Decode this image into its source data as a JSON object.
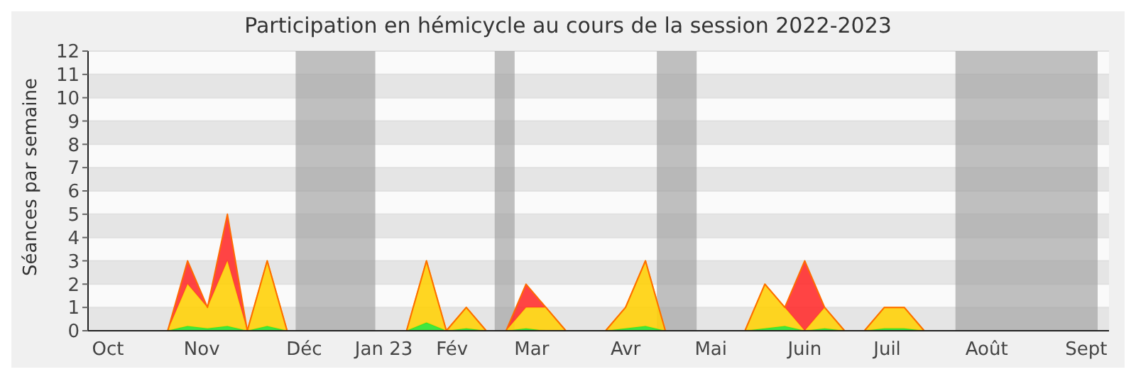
{
  "chart_data": {
    "type": "area",
    "title": "Participation en hémicycle au cours de la session 2022-2023",
    "ylabel": "Séances par semaine",
    "stacked": true,
    "grid": "y",
    "legend": false,
    "x": [
      "2022-09-26",
      "2022-10-24",
      "2022-10-31",
      "2022-11-07",
      "2022-11-14",
      "2022-11-21",
      "2022-11-28",
      "2022-12-05",
      "2023-01-16",
      "2023-01-23",
      "2023-01-30",
      "2023-02-06",
      "2023-02-13",
      "2023-02-20",
      "2023-02-27",
      "2023-03-06",
      "2023-03-13",
      "2023-03-27",
      "2023-04-03",
      "2023-04-10",
      "2023-04-17",
      "2023-05-15",
      "2023-05-22",
      "2023-05-29",
      "2023-06-05",
      "2023-06-12",
      "2023-06-19",
      "2023-06-26",
      "2023-07-03",
      "2023-07-10",
      "2023-07-17",
      "2023-09-18"
    ],
    "series": [
      {
        "color": "#2fe62f",
        "values": [
          0,
          0,
          0.2,
          0.1,
          0.2,
          0,
          0.2,
          0,
          0,
          0.35,
          0,
          0.1,
          0,
          0,
          0.1,
          0,
          0,
          0,
          0.1,
          0.2,
          0,
          0,
          0.1,
          0.2,
          0,
          0.1,
          0,
          0,
          0.1,
          0.1,
          0,
          0
        ]
      },
      {
        "color": "#ffd20a",
        "values": [
          0,
          0,
          1.8,
          0.9,
          2.8,
          0,
          2.8,
          0,
          0,
          2.65,
          0,
          0.9,
          0,
          0,
          0.9,
          1,
          0,
          0,
          0.9,
          2.8,
          0,
          0,
          1.9,
          0.8,
          0,
          0.9,
          0,
          0,
          0.9,
          0.9,
          0,
          0
        ]
      },
      {
        "color": "#ff3030",
        "values": [
          0,
          0,
          1,
          0,
          2,
          0,
          0,
          0,
          0,
          0,
          0,
          0,
          0,
          0,
          1,
          0,
          0,
          0,
          0,
          0,
          0,
          0,
          0,
          0,
          3,
          0,
          0,
          0,
          0,
          0,
          0,
          0
        ]
      }
    ],
    "xlim": [
      "2022-09-26",
      "2023-09-20"
    ],
    "xticks": [
      {
        "value": "2022-10-03",
        "label": "Oct"
      },
      {
        "value": "2022-11-05",
        "label": "Nov"
      },
      {
        "value": "2022-12-11",
        "label": "Déc"
      },
      {
        "value": "2023-01-08",
        "label": "Jan 23"
      },
      {
        "value": "2023-02-01",
        "label": "Fév"
      },
      {
        "value": "2023-03-01",
        "label": "Mar"
      },
      {
        "value": "2023-04-03",
        "label": "Avr"
      },
      {
        "value": "2023-05-03",
        "label": "Mai"
      },
      {
        "value": "2023-06-05",
        "label": "Juin"
      },
      {
        "value": "2023-07-04",
        "label": "Juil"
      },
      {
        "value": "2023-08-08",
        "label": "Août"
      },
      {
        "value": "2023-09-12",
        "label": "Sept"
      }
    ],
    "ylim": [
      0,
      12
    ],
    "yticks": [
      0,
      1,
      2,
      3,
      4,
      5,
      6,
      7,
      8,
      9,
      10,
      11,
      12
    ],
    "bands": [
      {
        "axis": "x",
        "from": "2022-12-08",
        "to": "2023-01-05",
        "color": "#a0a0a0"
      },
      {
        "axis": "x",
        "from": "2023-02-16",
        "to": "2023-02-23",
        "color": "#a0a0a0"
      },
      {
        "axis": "x",
        "from": "2023-04-14",
        "to": "2023-04-28",
        "color": "#a0a0a0"
      },
      {
        "axis": "x",
        "from": "2023-07-28",
        "to": "2023-09-16",
        "color": "#a0a0a0"
      }
    ]
  }
}
